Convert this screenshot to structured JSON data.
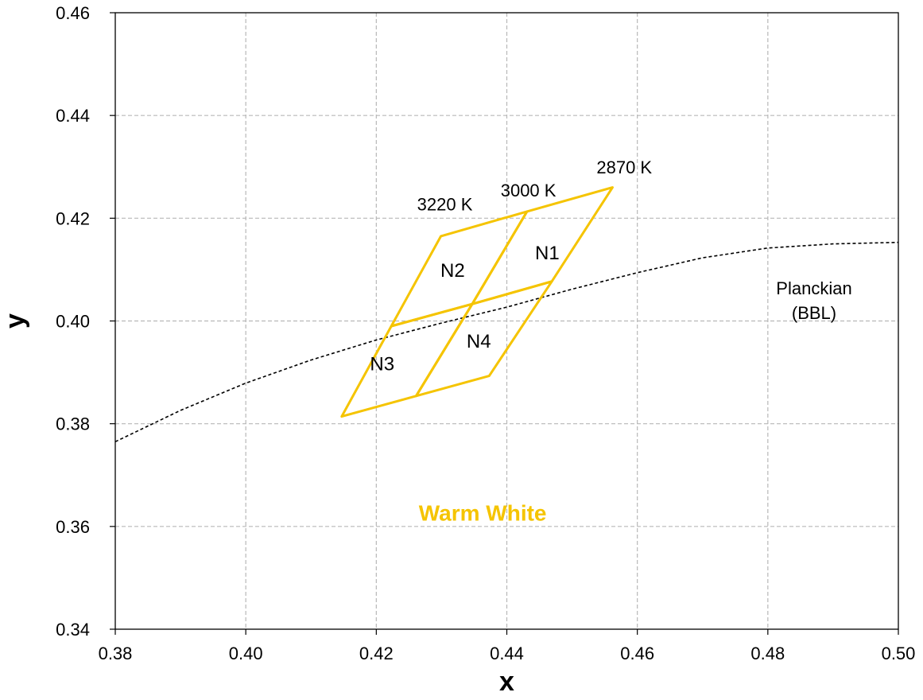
{
  "chart_data": {
    "type": "line",
    "title": "",
    "xlabel": "x",
    "ylabel": "y",
    "xlim": [
      0.38,
      0.5
    ],
    "ylim": [
      0.34,
      0.46
    ],
    "x_ticks": [
      0.38,
      0.4,
      0.42,
      0.44,
      0.46,
      0.48,
      0.5
    ],
    "y_ticks": [
      0.34,
      0.36,
      0.38,
      0.4,
      0.42,
      0.44,
      0.46
    ],
    "x_tick_labels": [
      "0.38",
      "0.40",
      "0.42",
      "0.44",
      "0.46",
      "0.48",
      "0.50"
    ],
    "y_tick_labels": [
      "0.34",
      "0.36",
      "0.38",
      "0.40",
      "0.42",
      "0.44",
      "0.46"
    ],
    "grid": true,
    "colors": {
      "bins": "#f5c400",
      "bbl": "#000000",
      "grid": "#b8b8b8"
    },
    "bbl": {
      "label_lines": [
        "Planckian",
        "(BBL)"
      ],
      "points": [
        [
          0.38,
          0.3765
        ],
        [
          0.39,
          0.3826
        ],
        [
          0.4,
          0.3879
        ],
        [
          0.41,
          0.3924
        ],
        [
          0.42,
          0.3963
        ],
        [
          0.43,
          0.3996
        ],
        [
          0.44,
          0.4027
        ],
        [
          0.45,
          0.4062
        ],
        [
          0.46,
          0.4094
        ],
        [
          0.47,
          0.4123
        ],
        [
          0.48,
          0.4142
        ],
        [
          0.49,
          0.415
        ],
        [
          0.5,
          0.4153
        ]
      ]
    },
    "bins": [
      {
        "name": "N1",
        "label_at": [
          0.4462,
          0.4134
        ],
        "points": [
          [
            0.4431,
            0.4213
          ],
          [
            0.4562,
            0.426
          ],
          [
            0.4469,
            0.4077
          ],
          [
            0.4347,
            0.4033
          ]
        ]
      },
      {
        "name": "N2",
        "label_at": [
          0.4317,
          0.41
        ],
        "points": [
          [
            0.4299,
            0.4165
          ],
          [
            0.4431,
            0.4213
          ],
          [
            0.4347,
            0.4033
          ],
          [
            0.4223,
            0.399
          ]
        ]
      },
      {
        "name": "N3",
        "label_at": [
          0.4209,
          0.3918
        ],
        "points": [
          [
            0.4223,
            0.399
          ],
          [
            0.4347,
            0.4033
          ],
          [
            0.4261,
            0.3854
          ],
          [
            0.4147,
            0.3814
          ]
        ]
      },
      {
        "name": "N4",
        "label_at": [
          0.4357,
          0.3962
        ],
        "points": [
          [
            0.4347,
            0.4033
          ],
          [
            0.4469,
            0.4077
          ],
          [
            0.4373,
            0.3893
          ],
          [
            0.4261,
            0.3854
          ]
        ]
      }
    ],
    "cct_labels": [
      {
        "text": "3220 K",
        "at": [
          0.4305,
          0.4228
        ]
      },
      {
        "text": "3000 K",
        "at": [
          0.4433,
          0.4255
        ]
      },
      {
        "text": "2870 K",
        "at": [
          0.458,
          0.43
        ]
      }
    ],
    "region_label": {
      "text": "Warm White",
      "at": [
        0.4363,
        0.3627
      ]
    }
  }
}
